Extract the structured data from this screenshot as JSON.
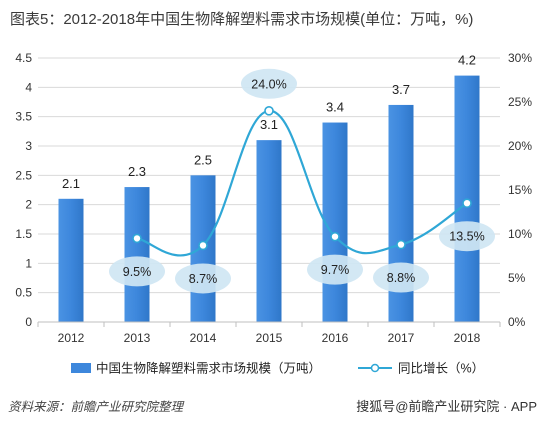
{
  "title": "图表5：2012-2018年中国生物降解塑料需求市场规模(单位：万吨，%)",
  "source": "资料来源：前瞻产业研究院整理",
  "watermark": "搜狐号@前瞻产业研究院 · APP",
  "colors": {
    "bar": "#3d87dc",
    "line": "#2fa7d6",
    "bubble": "#cfe6f3",
    "grid": "#d9d9d9",
    "axis_text": "#333333"
  },
  "chart_data": {
    "type": "bar+line",
    "categories": [
      "2012",
      "2013",
      "2014",
      "2015",
      "2016",
      "2017",
      "2018"
    ],
    "series": [
      {
        "name": "中国生物降解塑料需求市场规模（万吨）",
        "type": "bar",
        "axis": "left",
        "values": [
          2.1,
          2.3,
          2.5,
          3.1,
          3.4,
          3.7,
          4.2
        ],
        "labels": [
          "2.1",
          "2.3",
          "2.5",
          "3.1",
          "3.4",
          "3.7",
          "4.2"
        ]
      },
      {
        "name": "同比增长（%）",
        "type": "line",
        "axis": "right",
        "values": [
          null,
          9.5,
          8.7,
          24.0,
          9.7,
          8.8,
          13.5
        ],
        "labels": [
          "",
          "9.5%",
          "8.7%",
          "24.0%",
          "9.7%",
          "8.8%",
          "13.5%"
        ]
      }
    ],
    "y_left": {
      "min": 0,
      "max": 4.5,
      "step": 0.5,
      "ticks": [
        "0",
        "0.5",
        "1",
        "1.5",
        "2",
        "2.5",
        "3",
        "3.5",
        "4",
        "4.5"
      ]
    },
    "y_right": {
      "min": 0,
      "max": 30,
      "step": 5,
      "ticks": [
        "0%",
        "5%",
        "10%",
        "15%",
        "20%",
        "25%",
        "30%"
      ]
    },
    "grid": true,
    "legend": "bottom"
  }
}
